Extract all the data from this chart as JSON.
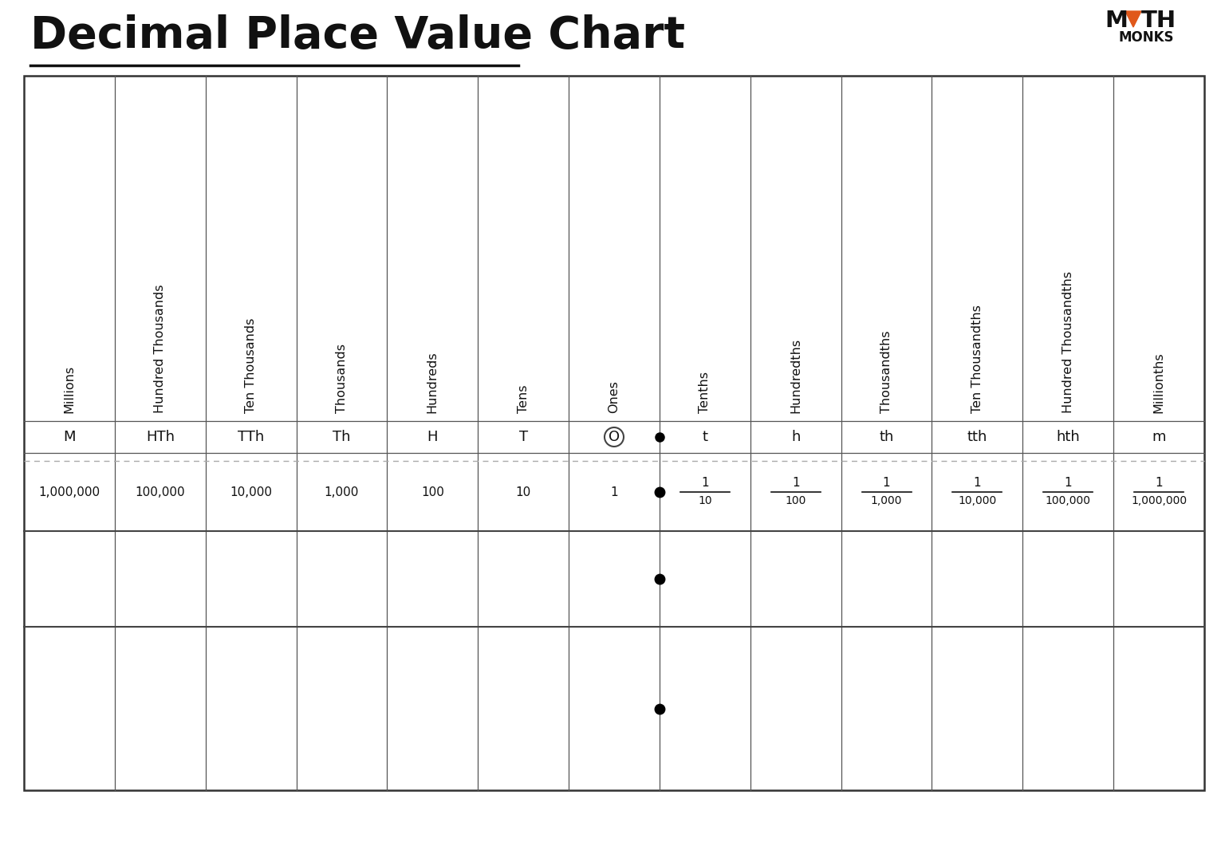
{
  "title": "Decimal Place Value Chart",
  "bg": "#ffffff",
  "title_fontsize": 40,
  "columns": [
    {
      "name": "Millions",
      "abbr": "M",
      "value": "1,000,000",
      "frac": false,
      "circled": false
    },
    {
      "name": "Hundred Thousands",
      "abbr": "HTh",
      "value": "100,000",
      "frac": false,
      "circled": false
    },
    {
      "name": "Ten Thousands",
      "abbr": "TTh",
      "value": "10,000",
      "frac": false,
      "circled": false
    },
    {
      "name": "Thousands",
      "abbr": "Th",
      "value": "1,000",
      "frac": false,
      "circled": false
    },
    {
      "name": "Hundreds",
      "abbr": "H",
      "value": "100",
      "frac": false,
      "circled": false
    },
    {
      "name": "Tens",
      "abbr": "T",
      "value": "10",
      "frac": false,
      "circled": false
    },
    {
      "name": "Ones",
      "abbr": "O",
      "value": "1",
      "frac": false,
      "circled": true
    },
    {
      "name": "Tenths",
      "abbr": "t",
      "value": "1",
      "den": "10",
      "frac": true,
      "circled": false
    },
    {
      "name": "Hundredths",
      "abbr": "h",
      "value": "1",
      "den": "100",
      "frac": true,
      "circled": false
    },
    {
      "name": "Thousandths",
      "abbr": "th",
      "value": "1",
      "den": "1,000",
      "frac": true,
      "circled": false
    },
    {
      "name": "Ten Thousandths",
      "abbr": "tth",
      "value": "1",
      "den": "10,000",
      "frac": true,
      "circled": false
    },
    {
      "name": "Hundred Thousandths",
      "abbr": "hth",
      "value": "1",
      "den": "100,000",
      "frac": true,
      "circled": false
    },
    {
      "name": "Millionths",
      "abbr": "m",
      "value": "1",
      "den": "1,000,000",
      "frac": true,
      "circled": false
    }
  ],
  "dot_after_col": 6,
  "logo_tri_color": "#e0581a",
  "n_extra_rows": 2
}
